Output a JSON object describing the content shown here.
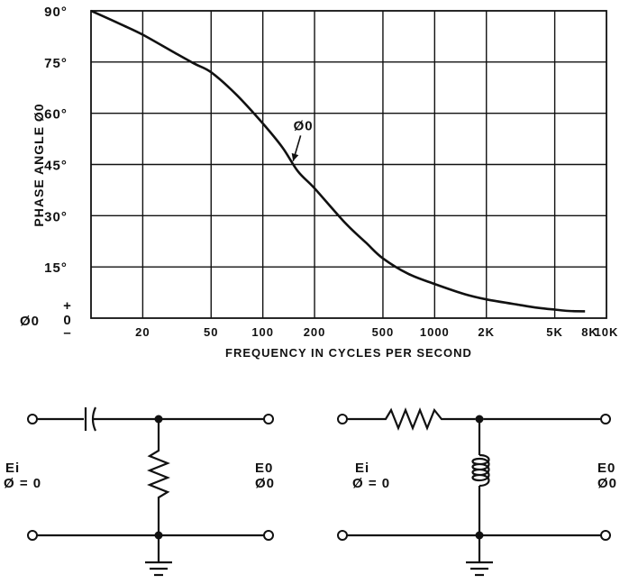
{
  "chart_data": {
    "type": "line",
    "title": "",
    "xlabel": "FREQUENCY IN CYCLES PER SECOND",
    "ylabel": "PHASE ANGLE Ø0",
    "x_scale": "log",
    "xlim": [
      10,
      10000
    ],
    "ylim": [
      0,
      90
    ],
    "grid": true,
    "y_ticks": [
      {
        "value": 90,
        "label": "90°"
      },
      {
        "value": 75,
        "label": "75°"
      },
      {
        "value": 60,
        "label": "60°"
      },
      {
        "value": 45,
        "label": "45°"
      },
      {
        "value": 30,
        "label": "30°"
      },
      {
        "value": 15,
        "label": "15°"
      }
    ],
    "y_zero_label": "0",
    "y_zero_symbol": "Ø0",
    "y_zero_plus": "+",
    "y_zero_minus": "–",
    "x_ticks": [
      {
        "value": 20,
        "label": "20"
      },
      {
        "value": 50,
        "label": "50"
      },
      {
        "value": 100,
        "label": "100"
      },
      {
        "value": 200,
        "label": "200"
      },
      {
        "value": 500,
        "label": "500"
      },
      {
        "value": 1000,
        "label": "1000"
      },
      {
        "value": 2000,
        "label": "2K"
      },
      {
        "value": 5000,
        "label": "5K"
      },
      {
        "value": 8000,
        "label": "8K"
      },
      {
        "value": 10000,
        "label": "10K"
      }
    ],
    "x_gridlines": [
      20,
      50,
      100,
      200,
      500,
      1000,
      2000,
      5000
    ],
    "series": [
      {
        "name": "Ø0",
        "x": [
          10,
          15,
          20,
          30,
          40,
          50,
          70,
          100,
          130,
          160,
          200,
          300,
          400,
          500,
          700,
          1000,
          1500,
          2000,
          3000,
          4000,
          5000,
          6000,
          7500
        ],
        "y": [
          90,
          86,
          83,
          78,
          74.5,
          72,
          65.5,
          57,
          50,
          43,
          38,
          28,
          22,
          17.5,
          13,
          10,
          7,
          5.5,
          4,
          3,
          2.5,
          2.1,
          2
        ]
      }
    ],
    "annotations": [
      {
        "text": "Ø0",
        "x": 170,
        "y": 54,
        "arrow_to_x": 150,
        "arrow_to_y": 46
      }
    ]
  },
  "circuits": [
    {
      "kind": "high-pass RC",
      "input_label": "Ei",
      "input_phase": "Ø = 0",
      "output_label": "E0",
      "output_phase": "Ø0"
    },
    {
      "kind": "RL",
      "input_label": "Ei",
      "input_phase": "Ø = 0",
      "output_label": "E0",
      "output_phase": "Ø0"
    }
  ]
}
